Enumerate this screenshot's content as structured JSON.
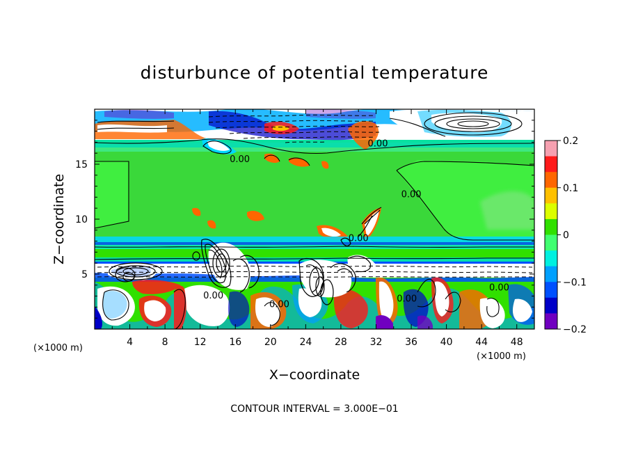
{
  "chart_data": {
    "type": "heatmap",
    "title": "disturbunce of potential temperature",
    "xlabel": "X−coordinate",
    "ylabel": "Z−coordinate",
    "x_unit_label": "(×1000 m)",
    "x_unit_label_right": "(×1000 m)",
    "xlim": [
      0,
      50
    ],
    "ylim": [
      0,
      20
    ],
    "x_ticks": [
      4,
      8,
      12,
      16,
      20,
      24,
      28,
      32,
      36,
      40,
      44,
      48
    ],
    "x_tick_labels": [
      "4",
      "8",
      "12",
      "16",
      "20",
      "24",
      "28",
      "32",
      "36",
      "40",
      "44",
      "48"
    ],
    "y_ticks": [
      5,
      10,
      15
    ],
    "y_tick_labels": [
      "5",
      "10",
      "15"
    ],
    "colorbar": {
      "range": [
        -0.2,
        0.2
      ],
      "ticks": [
        0.2,
        0.1,
        0,
        -0.1,
        -0.2
      ],
      "tick_labels": [
        "0.2",
        "0.1",
        "0",
        "−0.1",
        "−0.2"
      ],
      "colors": [
        "#f6a0b0",
        "#ff1a1a",
        "#ff6600",
        "#ffc000",
        "#dcff00",
        "#30e000",
        "#40ff70",
        "#00f0e0",
        "#00a0ff",
        "#0050ff",
        "#0000c8",
        "#7000c0"
      ]
    },
    "contour_labels": [
      {
        "text": "0.00",
        "x": 32.2,
        "y": 16.6
      },
      {
        "text": "0.00",
        "x": 16.5,
        "y": 15.2
      },
      {
        "text": "0.00",
        "x": 36.0,
        "y": 12.0
      },
      {
        "text": "0.00",
        "x": 30.0,
        "y": 8.0
      },
      {
        "text": "0.00",
        "x": 13.5,
        "y": 2.8
      },
      {
        "text": "0.00",
        "x": 21.0,
        "y": 2.0
      },
      {
        "text": "0.00",
        "x": 35.5,
        "y": 2.5
      },
      {
        "text": "0.00",
        "x": 46.0,
        "y": 3.5
      }
    ],
    "contour_interval_text": "CONTOUR INTERVAL = 3.000E−01",
    "grid": false,
    "legend": "colorbar-right"
  }
}
